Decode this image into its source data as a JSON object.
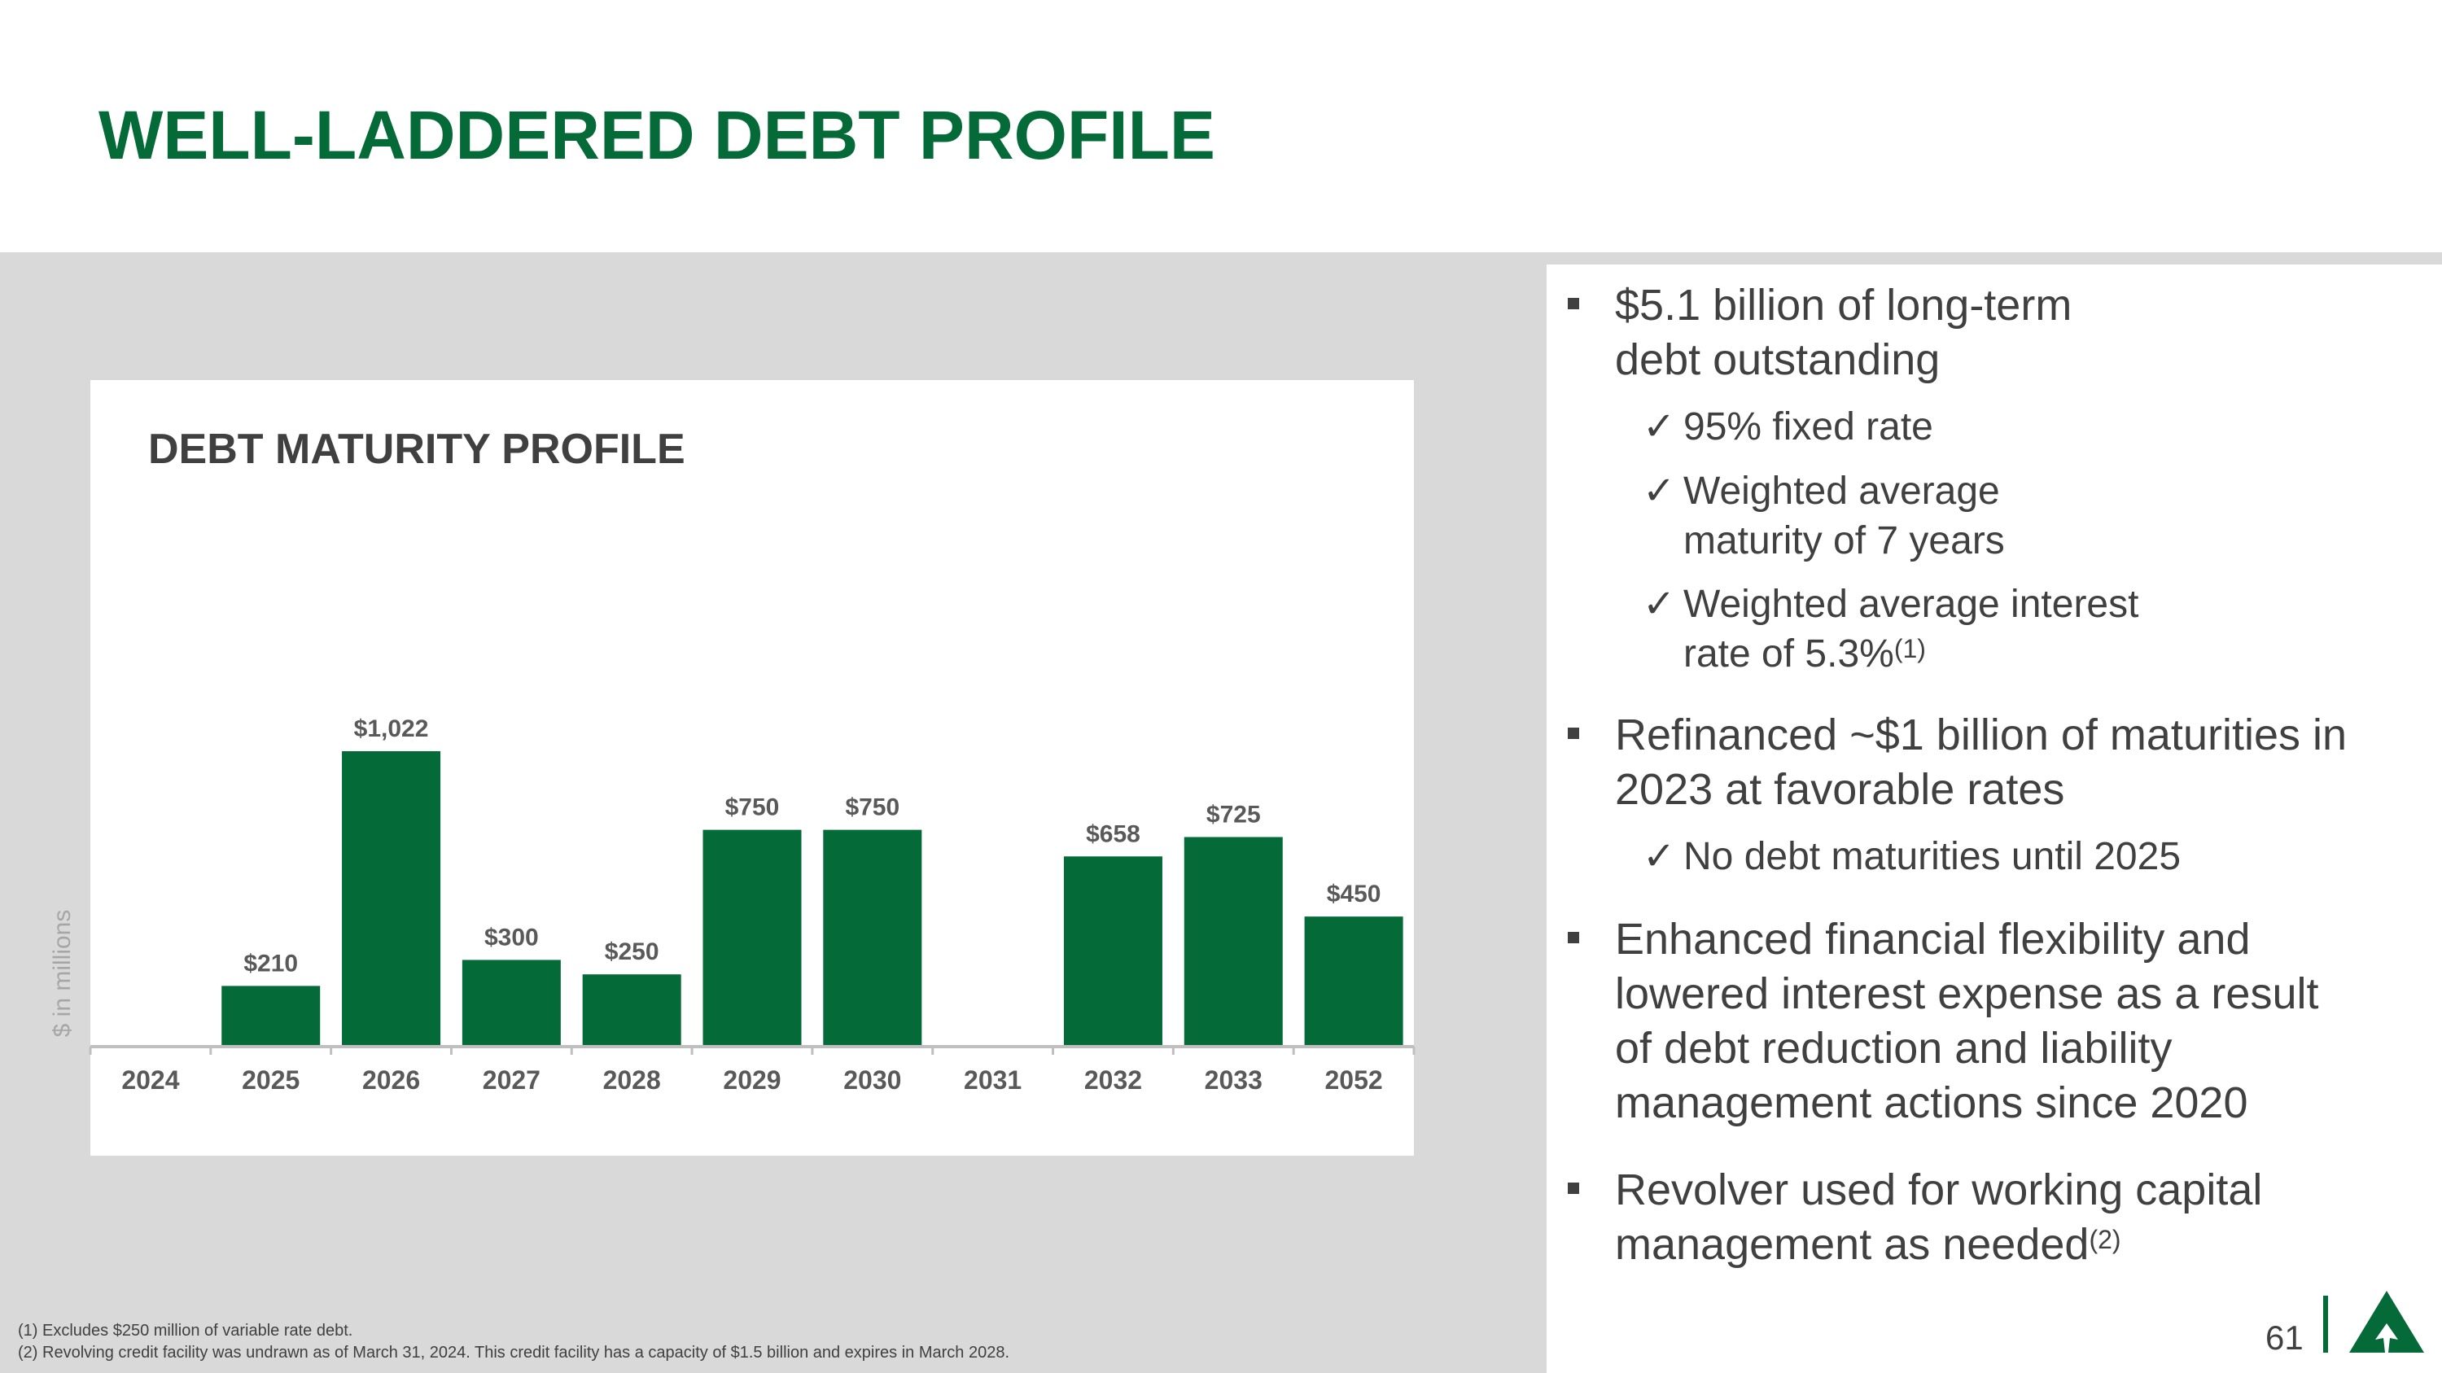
{
  "title": "WELL-LADDERED DEBT PROFILE",
  "chart_data": {
    "type": "bar",
    "title": "DEBT MATURITY PROFILE",
    "ylabel": "$ in millions",
    "xlabel": "",
    "categories": [
      "2024",
      "2025",
      "2026",
      "2027",
      "2028",
      "2029",
      "2030",
      "2031",
      "2032",
      "2033",
      "2052"
    ],
    "values": [
      0,
      210,
      1022,
      300,
      250,
      750,
      750,
      0,
      658,
      725,
      450
    ],
    "labels": [
      "",
      "$210",
      "$1,022",
      "$300",
      "$250",
      "$750",
      "$750",
      "",
      "$658",
      "$725",
      "$450"
    ],
    "ylim": [
      0,
      1100
    ],
    "grid": false,
    "color": "#046a38"
  },
  "bullets": [
    {
      "text": "$5.1 billion of long-term debt outstanding"
    },
    {
      "text": "Refinanced ~$1 billion of maturities in 2023 at favorable rates"
    },
    {
      "text": "Enhanced financial flexibility and lowered interest expense as a result of debt reduction and liability management actions since 2020"
    },
    {
      "text": "Revolver used for working capital management as needed",
      "sup": "(2)"
    }
  ],
  "subs": [
    {
      "text": "95% fixed rate"
    },
    {
      "text": "Weighted average maturity of 7 years"
    },
    {
      "text": "Weighted average interest rate of 5.3%",
      "sup": "(1)"
    },
    {
      "text": "No debt maturities until 2025"
    }
  ],
  "check": "✓",
  "footnotes": [
    "(1) Excludes $250 million of variable rate debt.",
    "(2) Revolving credit facility was undrawn as of March 31, 2024. This credit facility has a capacity of $1.5 billion and expires in March 2028."
  ],
  "page_number": "61",
  "colors": {
    "brand": "#046a38",
    "text": "#404040",
    "band": "#d9d9d9"
  }
}
